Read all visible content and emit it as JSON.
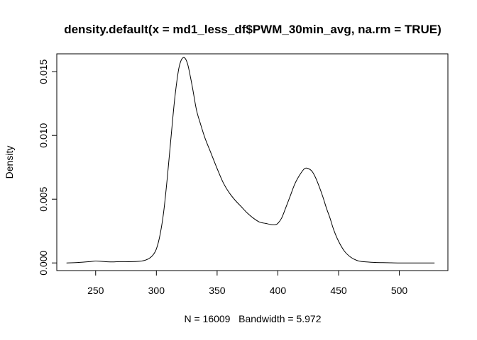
{
  "chart_data": {
    "type": "line",
    "title": "density.default(x = md1_less_df$PWM_30min_avg, na.rm = TRUE)",
    "xlabel": "N = 16009   Bandwidth = 5.972",
    "ylabel": "Density",
    "xlim": [
      218,
      540
    ],
    "ylim": [
      -0.0006,
      0.0164
    ],
    "x_ticks": [
      250,
      300,
      350,
      400,
      450,
      500
    ],
    "x_tick_labels": [
      "250",
      "300",
      "350",
      "400",
      "450",
      "500"
    ],
    "y_ticks": [
      0.0,
      0.005,
      0.01,
      0.015
    ],
    "y_tick_labels": [
      "0.000",
      "0.005",
      "0.010",
      "0.015"
    ],
    "grid": false,
    "line_color": "#000000",
    "series": [
      {
        "x": [
          226,
          235,
          245,
          250,
          255,
          262,
          270,
          280,
          288,
          293,
          297,
          300,
          303,
          306,
          309,
          312,
          315,
          318,
          320,
          322,
          324,
          326,
          328,
          330,
          333,
          336,
          340,
          345,
          350,
          355,
          360,
          365,
          370,
          375,
          380,
          385,
          390,
          395,
          398,
          400,
          403,
          406,
          410,
          414,
          418,
          422,
          425,
          428,
          431,
          434,
          437,
          440,
          443,
          446,
          450,
          455,
          460,
          465,
          470,
          480,
          490,
          500,
          510,
          520,
          529
        ],
        "y": [
          0.0,
          3e-05,
          0.0001,
          0.00015,
          0.00012,
          8e-05,
          0.0001,
          0.0001,
          0.00015,
          0.0003,
          0.0006,
          0.0011,
          0.0022,
          0.004,
          0.0067,
          0.0098,
          0.0128,
          0.015,
          0.0158,
          0.0161,
          0.016,
          0.0155,
          0.0146,
          0.0136,
          0.012,
          0.011,
          0.0098,
          0.0086,
          0.0074,
          0.0063,
          0.0055,
          0.0049,
          0.0044,
          0.0039,
          0.0035,
          0.0032,
          0.0031,
          0.003,
          0.003,
          0.0031,
          0.0035,
          0.0042,
          0.0052,
          0.0062,
          0.0069,
          0.0074,
          0.0074,
          0.0072,
          0.0067,
          0.006,
          0.0052,
          0.0043,
          0.0035,
          0.0026,
          0.0017,
          0.0009,
          0.00045,
          0.0002,
          0.0001,
          4e-05,
          2e-05,
          0.0,
          0.0,
          0.0,
          0.0
        ]
      }
    ]
  }
}
